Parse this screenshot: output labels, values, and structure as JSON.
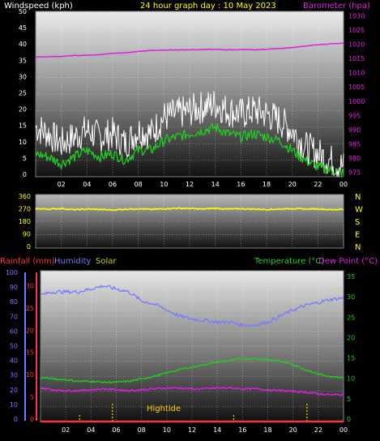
{
  "header": {
    "left_label": "Windspeed (kph)",
    "center_label": "24 hour graph day : 10 May 2023",
    "right_label": "Barometer (hpa)"
  },
  "bottom_header": {
    "rainfall_label": "Rainfall (mm)",
    "humidity_label": "Humidity",
    "solar_label": "Solar",
    "temperature_label": "Temperature (°C)",
    "dewpoint_label": "Dew Point (°C)"
  },
  "hightide_label": "Hightide",
  "colors": {
    "wind_gust": "#ffffff",
    "wind_avg": "#22cc22",
    "barometer": "#e020e0",
    "direction": "#ffff00",
    "humidity": "#7777ff",
    "temperature": "#22cc22",
    "dewpoint": "#e020e0",
    "rainfall": "#ff3333",
    "solar": "#c8c800"
  },
  "chart_data": [
    {
      "type": "line",
      "name": "wind-barometer",
      "x_ticks": [
        "02",
        "04",
        "06",
        "08",
        "10",
        "12",
        "14",
        "16",
        "18",
        "20",
        "22",
        "00"
      ],
      "y_left_ticks": [
        0,
        5,
        10,
        15,
        20,
        25,
        30,
        35,
        40,
        45,
        50
      ],
      "y_left_range": [
        0,
        50
      ],
      "y_right_ticks": [
        975,
        980,
        985,
        990,
        995,
        1000,
        1005,
        1010,
        1015,
        1020,
        1025,
        1030
      ],
      "y_right_range": [
        973.5,
        1031.5
      ],
      "hours": [
        0,
        1,
        2,
        3,
        4,
        5,
        6,
        7,
        8,
        9,
        10,
        11,
        12,
        13,
        14,
        15,
        16,
        17,
        18,
        19,
        20,
        21,
        22,
        23,
        24
      ],
      "series": [
        {
          "key": "gust",
          "values": [
            15,
            13,
            10,
            12,
            14,
            12,
            13,
            10,
            14,
            13,
            18,
            19,
            20,
            21,
            22,
            20,
            19,
            20,
            19,
            17,
            14,
            9,
            7,
            5,
            3
          ]
        },
        {
          "key": "avg",
          "values": [
            7,
            6,
            4,
            6,
            8,
            6,
            7,
            5,
            8,
            8,
            11,
            12,
            13,
            14,
            15,
            13,
            12,
            13,
            12,
            11,
            8,
            5,
            3,
            2,
            1
          ]
        },
        {
          "key": "barometer",
          "values": [
            1015.5,
            1015.6,
            1015.7,
            1016.0,
            1016.1,
            1016.3,
            1016.8,
            1017.0,
            1017.4,
            1017.8,
            1017.9,
            1018.0,
            1018.0,
            1018.1,
            1018.2,
            1018.0,
            1018.1,
            1018.0,
            1018.2,
            1018.5,
            1018.8,
            1019.3,
            1019.8,
            1020.1,
            1020.3
          ]
        }
      ]
    },
    {
      "type": "line",
      "name": "wind-direction",
      "y_left_ticks": [
        0,
        90,
        180,
        270,
        360
      ],
      "y_left_range": [
        0,
        360
      ],
      "y_right_ticks": [
        "N",
        "W",
        "S",
        "E",
        "N"
      ],
      "hours": [
        0,
        1,
        2,
        3,
        4,
        5,
        6,
        7,
        8,
        9,
        10,
        11,
        12,
        13,
        14,
        15,
        16,
        17,
        18,
        19,
        20,
        21,
        22,
        23,
        24
      ],
      "series": [
        {
          "key": "direction",
          "values": [
            265,
            262,
            266,
            258,
            262,
            260,
            256,
            262,
            264,
            260,
            264,
            268,
            266,
            262,
            268,
            262,
            264,
            262,
            260,
            262,
            266,
            262,
            264,
            258,
            262
          ]
        }
      ]
    },
    {
      "type": "line",
      "name": "rain-humidity-temperature",
      "x_ticks": [
        "02",
        "04",
        "06",
        "08",
        "10",
        "12",
        "14",
        "16",
        "18",
        "20",
        "22",
        "00"
      ],
      "y_humidity_ticks": [
        0,
        10,
        20,
        30,
        40,
        50,
        60,
        70,
        80,
        90,
        100
      ],
      "y_humidity_range": [
        0,
        100
      ],
      "y_rainfall_ticks": [
        0,
        5,
        10,
        15,
        20,
        25,
        30
      ],
      "y_rainfall_range": [
        0,
        33
      ],
      "y_temperature_ticks": [
        0,
        5,
        10,
        15,
        20,
        25,
        30,
        35
      ],
      "y_temperature_range": [
        0,
        36
      ],
      "hours": [
        0,
        1,
        2,
        3,
        4,
        5,
        6,
        7,
        8,
        9,
        10,
        11,
        12,
        13,
        14,
        15,
        16,
        17,
        18,
        19,
        20,
        21,
        22,
        23,
        24
      ],
      "series": [
        {
          "key": "humidity",
          "values": [
            84,
            86,
            86,
            86,
            88,
            90,
            88,
            86,
            80,
            78,
            74,
            70,
            68,
            67,
            66,
            66,
            64,
            64,
            66,
            70,
            74,
            77,
            79,
            81,
            82
          ]
        },
        {
          "key": "temperature",
          "values": [
            10.5,
            10.2,
            10.0,
            9.6,
            9.6,
            9.4,
            9.4,
            9.6,
            10.2,
            10.8,
            11.6,
            12.4,
            13.0,
            13.6,
            14.2,
            14.6,
            15.0,
            15.0,
            14.8,
            14.4,
            13.6,
            12.4,
            11.4,
            10.6,
            10.4
          ]
        },
        {
          "key": "dewpoint",
          "values": [
            8.0,
            7.6,
            7.4,
            7.4,
            7.6,
            7.8,
            7.6,
            7.4,
            7.6,
            7.8,
            8.0,
            8.0,
            7.8,
            7.8,
            8.0,
            8.0,
            7.8,
            7.8,
            7.6,
            7.4,
            7.2,
            7.0,
            6.6,
            6.4,
            6.4
          ]
        },
        {
          "key": "rainfall",
          "values": [
            0,
            0,
            0,
            0,
            0,
            0,
            0,
            0,
            0,
            0,
            0,
            0,
            0,
            0,
            0,
            0,
            0,
            0,
            0,
            0,
            0,
            0,
            0,
            0,
            0
          ]
        }
      ],
      "hightide_hours": [
        5.7,
        21.1
      ],
      "low_tide_hours": [
        3.1,
        15.3
      ]
    }
  ]
}
